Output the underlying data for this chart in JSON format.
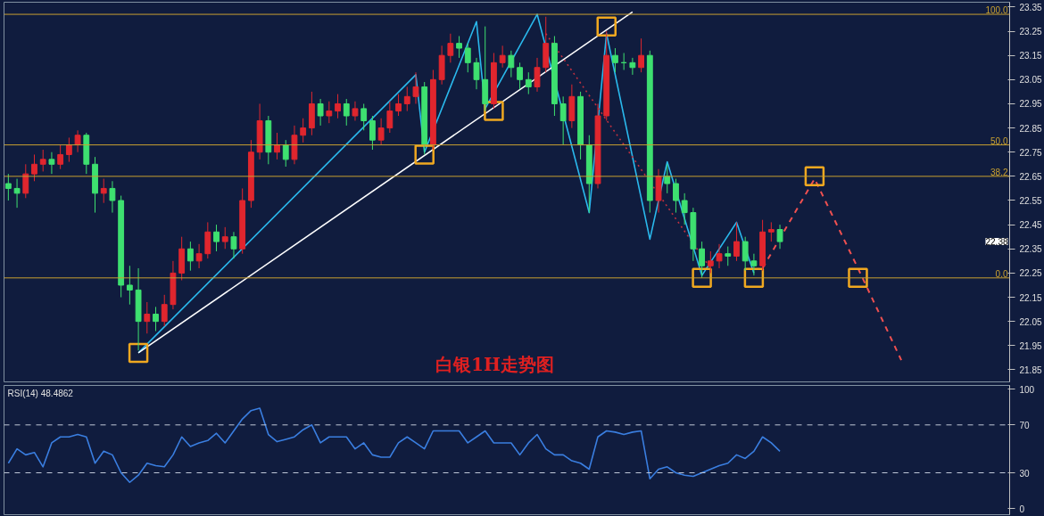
{
  "chart_data": [
    {
      "type": "candlestick",
      "title": "白银1H走势图",
      "ylim": [
        21.8,
        23.37
      ],
      "yticks": [
        21.85,
        21.95,
        22.05,
        22.15,
        22.25,
        22.35,
        22.45,
        22.55,
        22.65,
        22.75,
        22.85,
        22.95,
        23.05,
        23.15,
        23.25,
        23.35
      ],
      "tick_labels": "y",
      "categories": [
        null,
        null,
        null,
        null,
        null,
        null,
        null,
        null,
        null,
        null,
        null,
        null,
        null,
        null,
        null,
        null,
        null,
        null,
        null,
        null,
        null,
        null,
        null,
        null,
        null,
        null,
        null,
        null,
        null,
        null,
        null,
        null,
        null,
        null,
        null,
        null,
        null,
        null,
        null,
        null,
        null,
        null,
        null,
        null,
        null,
        null,
        null,
        null,
        null,
        null,
        null,
        null,
        null,
        null,
        null,
        null,
        null,
        null,
        null,
        null,
        null,
        null,
        null,
        null,
        null,
        null,
        null,
        null,
        null,
        null,
        null,
        null,
        null,
        null,
        null,
        null,
        null,
        null,
        null,
        null,
        null,
        null,
        null,
        null,
        null,
        null,
        null,
        null,
        null,
        null,
        null,
        null,
        null,
        null,
        null,
        null,
        null,
        null,
        null,
        null,
        null,
        null,
        null,
        null,
        null,
        null,
        null,
        null,
        null,
        null,
        null,
        null,
        null,
        null,
        null,
        null
      ],
      "ohlc": [
        [
          22.62,
          22.66,
          22.55,
          22.6
        ],
        [
          22.6,
          22.64,
          22.52,
          22.58
        ],
        [
          22.58,
          22.7,
          22.56,
          22.66
        ],
        [
          22.66,
          22.74,
          22.63,
          22.7
        ],
        [
          22.7,
          22.76,
          22.67,
          22.72
        ],
        [
          22.72,
          22.75,
          22.66,
          22.7
        ],
        [
          22.7,
          22.78,
          22.68,
          22.74
        ],
        [
          22.74,
          22.81,
          22.71,
          22.78
        ],
        [
          22.78,
          22.84,
          22.75,
          22.82
        ],
        [
          22.82,
          22.83,
          22.66,
          22.7
        ],
        [
          22.7,
          22.73,
          22.5,
          22.58
        ],
        [
          22.58,
          22.64,
          22.54,
          22.6
        ],
        [
          22.6,
          22.63,
          22.5,
          22.55
        ],
        [
          22.55,
          22.57,
          22.15,
          22.2
        ],
        [
          22.2,
          22.28,
          22.12,
          22.18
        ],
        [
          22.18,
          22.27,
          21.93,
          22.05
        ],
        [
          22.05,
          22.13,
          22.0,
          22.08
        ],
        [
          22.08,
          22.11,
          22.01,
          22.05
        ],
        [
          22.05,
          22.16,
          22.03,
          22.12
        ],
        [
          22.12,
          22.3,
          22.1,
          22.25
        ],
        [
          22.25,
          22.4,
          22.22,
          22.35
        ],
        [
          22.35,
          22.38,
          22.26,
          22.3
        ],
        [
          22.3,
          22.37,
          22.27,
          22.33
        ],
        [
          22.33,
          22.46,
          22.31,
          22.42
        ],
        [
          22.42,
          22.45,
          22.34,
          22.38
        ],
        [
          22.38,
          22.44,
          22.35,
          22.4
        ],
        [
          22.4,
          22.42,
          22.31,
          22.35
        ],
        [
          22.35,
          22.6,
          22.33,
          22.55
        ],
        [
          22.55,
          22.8,
          22.52,
          22.75
        ],
        [
          22.75,
          22.95,
          22.72,
          22.88
        ],
        [
          22.88,
          22.9,
          22.7,
          22.75
        ],
        [
          22.75,
          22.83,
          22.72,
          22.78
        ],
        [
          22.78,
          22.8,
          22.69,
          22.72
        ],
        [
          22.72,
          22.86,
          22.7,
          22.82
        ],
        [
          22.82,
          22.89,
          22.79,
          22.85
        ],
        [
          22.85,
          23.0,
          22.82,
          22.95
        ],
        [
          22.95,
          22.97,
          22.86,
          22.9
        ],
        [
          22.9,
          22.96,
          22.87,
          22.92
        ],
        [
          22.92,
          22.99,
          22.89,
          22.95
        ],
        [
          22.95,
          22.97,
          22.86,
          22.9
        ],
        [
          22.9,
          22.96,
          22.88,
          22.93
        ],
        [
          22.93,
          22.95,
          22.84,
          22.88
        ],
        [
          22.88,
          22.9,
          22.76,
          22.8
        ],
        [
          22.8,
          22.89,
          22.78,
          22.85
        ],
        [
          22.85,
          22.96,
          22.83,
          22.92
        ],
        [
          22.92,
          22.99,
          22.9,
          22.95
        ],
        [
          22.95,
          23.02,
          22.92,
          22.98
        ],
        [
          22.98,
          23.08,
          22.95,
          23.02
        ],
        [
          23.02,
          23.04,
          22.74,
          22.78
        ],
        [
          22.78,
          23.09,
          22.76,
          23.05
        ],
        [
          23.05,
          23.19,
          23.03,
          23.15
        ],
        [
          23.15,
          23.24,
          23.12,
          23.2
        ],
        [
          23.2,
          23.23,
          23.14,
          23.18
        ],
        [
          23.18,
          23.2,
          23.08,
          23.12
        ],
        [
          23.12,
          23.14,
          23.01,
          23.05
        ],
        [
          23.05,
          23.27,
          22.92,
          22.95
        ],
        [
          22.95,
          23.16,
          22.93,
          23.12
        ],
        [
          23.12,
          23.19,
          23.1,
          23.15
        ],
        [
          23.15,
          23.17,
          23.06,
          23.1
        ],
        [
          23.1,
          23.12,
          23.01,
          23.05
        ],
        [
          23.05,
          23.08,
          22.99,
          23.02
        ],
        [
          23.02,
          23.14,
          23.0,
          23.1
        ],
        [
          23.1,
          23.31,
          23.08,
          23.2
        ],
        [
          23.2,
          23.23,
          22.9,
          22.95
        ],
        [
          22.95,
          22.98,
          22.78,
          22.88
        ],
        [
          22.88,
          23.03,
          22.85,
          22.98
        ],
        [
          22.98,
          23.0,
          22.72,
          22.78
        ],
        [
          22.78,
          22.82,
          22.5,
          22.62
        ],
        [
          22.62,
          22.95,
          22.6,
          22.9
        ],
        [
          22.9,
          23.25,
          22.88,
          23.15
        ],
        [
          23.15,
          23.18,
          23.08,
          23.12
        ],
        [
          23.12,
          23.16,
          23.09,
          23.12
        ],
        [
          23.12,
          23.14,
          23.07,
          23.1
        ],
        [
          23.1,
          23.22,
          23.08,
          23.15
        ],
        [
          23.15,
          23.17,
          22.5,
          22.55
        ],
        [
          22.55,
          22.68,
          22.5,
          22.65
        ],
        [
          22.65,
          22.7,
          22.58,
          22.62
        ],
        [
          22.62,
          22.64,
          22.5,
          22.55
        ],
        [
          22.55,
          22.58,
          22.45,
          22.5
        ],
        [
          22.5,
          22.52,
          22.3,
          22.35
        ],
        [
          22.35,
          22.38,
          22.23,
          22.28
        ],
        [
          22.28,
          22.34,
          22.25,
          22.3
        ],
        [
          22.3,
          22.37,
          22.27,
          22.33
        ],
        [
          22.33,
          22.36,
          22.28,
          22.32
        ],
        [
          22.32,
          22.46,
          22.3,
          22.38
        ],
        [
          22.38,
          22.4,
          22.26,
          22.3
        ],
        [
          22.3,
          22.33,
          22.24,
          22.28
        ],
        [
          22.28,
          22.47,
          22.26,
          22.42
        ],
        [
          22.42,
          22.46,
          22.38,
          22.43
        ],
        [
          22.43,
          22.45,
          22.35,
          22.38
        ],
        null,
        null,
        null,
        null,
        null,
        null,
        null,
        null,
        null,
        null,
        null,
        null,
        null,
        null,
        null,
        null,
        null,
        null,
        null,
        null,
        null,
        null,
        null,
        null,
        null,
        null
      ],
      "colors": [
        "#3ee070",
        "#3ee070",
        "#e0262e",
        "#e0262e",
        "#e0262e",
        "#3ee070",
        "#e0262e",
        "#e0262e",
        "#e0262e",
        "#3ee070",
        "#3ee070",
        "#e0262e",
        "#3ee070",
        "#3ee070",
        "#3ee070",
        "#3ee070",
        "#e0262e",
        "#3ee070",
        "#e0262e",
        "#e0262e",
        "#e0262e",
        "#3ee070",
        "#e0262e",
        "#e0262e",
        "#3ee070",
        "#e0262e",
        "#3ee070",
        "#e0262e",
        "#e0262e",
        "#e0262e",
        "#3ee070",
        "#e0262e",
        "#3ee070",
        "#e0262e",
        "#e0262e",
        "#e0262e",
        "#3ee070",
        "#e0262e",
        "#e0262e",
        "#3ee070",
        "#e0262e",
        "#3ee070",
        "#3ee070",
        "#e0262e",
        "#e0262e",
        "#e0262e",
        "#e0262e",
        "#e0262e",
        "#3ee070",
        "#e0262e",
        "#e0262e",
        "#e0262e",
        "#3ee070",
        "#3ee070",
        "#3ee070",
        "#3ee070",
        "#e0262e",
        "#e0262e",
        "#3ee070",
        "#3ee070",
        "#3ee070",
        "#e0262e",
        "#e0262e",
        "#3ee070",
        "#3ee070",
        "#e0262e",
        "#3ee070",
        "#3ee070",
        "#e0262e",
        "#e0262e",
        "#3ee070",
        "#3ee070",
        "#3ee070",
        "#e0262e",
        "#3ee070",
        "#e0262e",
        "#3ee070",
        "#3ee070",
        "#3ee070",
        "#3ee070",
        "#3ee070",
        "#e0262e",
        "#e0262e",
        "#3ee070",
        "#e0262e",
        "#3ee070",
        "#3ee070",
        "#e0262e",
        "#e0262e",
        "#3ee070",
        null,
        null,
        null,
        null,
        null,
        null,
        null,
        null,
        null,
        null,
        null,
        null,
        null,
        null,
        null,
        null,
        null,
        null,
        null,
        null,
        null,
        null,
        null,
        null,
        null,
        null
      ],
      "series": [
        {
          "type": "line",
          "color": "#2ab8ec",
          "values": [
            null,
            null,
            null,
            null,
            null,
            null,
            null,
            null,
            null,
            null,
            null,
            null,
            null,
            null,
            null,
            21.92,
            null,
            null,
            null,
            null,
            null,
            null,
            null,
            null,
            null,
            null,
            null,
            null,
            null,
            null,
            null,
            null,
            null,
            null,
            null,
            null,
            null,
            null,
            null,
            null,
            null,
            null,
            null,
            null,
            null,
            null,
            null,
            23.07,
            22.75,
            null,
            null,
            null,
            null,
            null,
            23.29,
            22.93,
            null,
            null,
            null,
            null,
            null,
            23.32,
            null,
            null,
            null,
            null,
            null,
            22.5,
            null,
            23.24,
            null,
            null,
            null,
            null,
            22.39,
            null,
            22.71,
            null,
            null,
            null,
            22.24,
            null,
            null,
            null,
            22.46,
            null,
            22.25,
            null,
            null,
            null,
            null,
            null,
            null,
            null,
            null,
            null,
            null,
            null,
            null,
            null,
            null,
            null,
            null,
            null,
            null,
            null,
            null,
            null,
            null,
            null,
            null,
            null,
            null,
            null,
            null,
            null
          ]
        },
        {
          "type": "line",
          "color": "#ffffff",
          "values": [
            null,
            null,
            null,
            null,
            null,
            null,
            null,
            null,
            null,
            null,
            null,
            null,
            null,
            null,
            null,
            21.92,
            null,
            null,
            null,
            null,
            null,
            null,
            null,
            null,
            null,
            null,
            null,
            null,
            null,
            null,
            null,
            null,
            null,
            null,
            null,
            null,
            null,
            null,
            null,
            null,
            null,
            null,
            null,
            null,
            null,
            null,
            null,
            null,
            null,
            null,
            null,
            null,
            null,
            null,
            null,
            null,
            null,
            null,
            null,
            null,
            null,
            null,
            null,
            null,
            null,
            null,
            null,
            null,
            null,
            null,
            null,
            null,
            23.33,
            null,
            null,
            null,
            null,
            null,
            null,
            null,
            null,
            null,
            null,
            null,
            null,
            null,
            null,
            null,
            null,
            null,
            null,
            null,
            null,
            null,
            null,
            null,
            null,
            null,
            null,
            null,
            null,
            null,
            null,
            null,
            null,
            null,
            null,
            null,
            null,
            null,
            null,
            null,
            null,
            null,
            null,
            null
          ]
        },
        {
          "type": "line",
          "color": "#c03040",
          "line_style": "dotted",
          "values": [
            null,
            null,
            null,
            null,
            null,
            null,
            null,
            null,
            null,
            null,
            null,
            null,
            null,
            null,
            null,
            null,
            null,
            null,
            null,
            null,
            null,
            null,
            null,
            null,
            null,
            null,
            null,
            null,
            null,
            null,
            null,
            null,
            null,
            null,
            null,
            null,
            null,
            null,
            null,
            null,
            null,
            null,
            null,
            null,
            null,
            null,
            null,
            null,
            null,
            null,
            null,
            null,
            null,
            null,
            null,
            null,
            null,
            null,
            null,
            null,
            null,
            null,
            23.24,
            null,
            null,
            null,
            null,
            null,
            null,
            null,
            null,
            null,
            null,
            null,
            null,
            null,
            null,
            null,
            null,
            null,
            null,
            22.27,
            null,
            null,
            null,
            null,
            null,
            null,
            null,
            null,
            null,
            null,
            null,
            null,
            null,
            null,
            null,
            null,
            null,
            null,
            null,
            null,
            null,
            null,
            null,
            null,
            null,
            null,
            null,
            null,
            null,
            null,
            null,
            null,
            null,
            null
          ]
        },
        {
          "type": "line",
          "color": "#f05050",
          "line_style": "dashed",
          "values": [
            null,
            null,
            null,
            null,
            null,
            null,
            null,
            null,
            null,
            null,
            null,
            null,
            null,
            null,
            null,
            null,
            null,
            null,
            null,
            null,
            null,
            null,
            null,
            null,
            null,
            null,
            null,
            null,
            null,
            null,
            null,
            null,
            null,
            null,
            null,
            null,
            null,
            null,
            null,
            null,
            null,
            null,
            null,
            null,
            null,
            null,
            null,
            null,
            null,
            null,
            null,
            null,
            null,
            null,
            null,
            null,
            null,
            null,
            null,
            null,
            null,
            null,
            null,
            null,
            null,
            null,
            null,
            null,
            null,
            null,
            null,
            null,
            null,
            null,
            null,
            null,
            null,
            null,
            null,
            null,
            null,
            null,
            null,
            null,
            null,
            null,
            null,
            22.27,
            null,
            null,
            null,
            null,
            null,
            22.64,
            null,
            null,
            null,
            null,
            22.27,
            null,
            null,
            null,
            null,
            21.89,
            null,
            null,
            null,
            null,
            null,
            null,
            null,
            null,
            null,
            null,
            null,
            null
          ]
        },
        {
          "type": "scatter",
          "marker": "square",
          "color": "#f0a820",
          "values": [
            null,
            null,
            null,
            null,
            null,
            null,
            null,
            null,
            null,
            null,
            null,
            null,
            null,
            null,
            null,
            21.92,
            null,
            null,
            null,
            null,
            null,
            null,
            null,
            null,
            null,
            null,
            null,
            null,
            null,
            null,
            null,
            null,
            null,
            null,
            null,
            null,
            null,
            null,
            null,
            null,
            null,
            null,
            null,
            null,
            null,
            null,
            null,
            null,
            22.74,
            null,
            null,
            null,
            null,
            null,
            null,
            null,
            22.92,
            null,
            null,
            null,
            null,
            null,
            null,
            null,
            null,
            null,
            null,
            null,
            null,
            23.27,
            null,
            null,
            null,
            null,
            null,
            null,
            null,
            null,
            null,
            null,
            22.23,
            null,
            null,
            null,
            null,
            null,
            22.23,
            null,
            null,
            null,
            null,
            null,
            null,
            22.65,
            null,
            null,
            null,
            null,
            22.23,
            null,
            null,
            null,
            null,
            null,
            null,
            null,
            null,
            null,
            null,
            null,
            null,
            null,
            null,
            null,
            null,
            null
          ]
        }
      ],
      "ref_lines": [
        {
          "axis": "y",
          "value": 23.32,
          "color": "#c8a030"
        },
        {
          "axis": "y",
          "value": 22.78,
          "color": "#c8a030"
        },
        {
          "axis": "y",
          "value": 22.65,
          "color": "#c8a030"
        },
        {
          "axis": "y",
          "value": 22.23,
          "color": "#c8a030"
        }
      ],
      "annotations": [
        {
          "text": "100.0",
          "y": 23.32
        },
        {
          "text": "50.0",
          "y": 22.78
        },
        {
          "text": "38.2",
          "y": 22.65
        },
        {
          "text": "0.0",
          "y": 22.23
        },
        {
          "text": "22.38",
          "y": 22.38
        }
      ]
    },
    {
      "type": "line",
      "title": "RSI(14) 48.4862",
      "ylim": [
        -5,
        103
      ],
      "yticks": [
        0,
        30,
        70,
        100
      ],
      "tick_labels": "y",
      "categories": [
        null,
        null,
        null,
        null,
        null,
        null,
        null,
        null,
        null,
        null,
        null,
        null,
        null,
        null,
        null,
        null,
        null,
        null,
        null,
        null,
        null,
        null,
        null,
        null,
        null,
        null,
        null,
        null,
        null,
        null,
        null,
        null,
        null,
        null,
        null,
        null,
        null,
        null,
        null,
        null,
        null,
        null,
        null,
        null,
        null,
        null,
        null,
        null,
        null,
        null,
        null,
        null,
        null,
        null,
        null,
        null,
        null,
        null,
        null,
        null,
        null,
        null,
        null,
        null,
        null,
        null,
        null,
        null,
        null,
        null,
        null,
        null,
        null,
        null,
        null,
        null,
        null,
        null,
        null,
        null,
        null,
        null,
        null,
        null,
        null,
        null,
        null,
        null,
        null,
        null,
        null,
        null,
        null,
        null,
        null,
        null,
        null,
        null,
        null,
        null,
        null,
        null,
        null,
        null,
        null,
        null,
        null,
        null,
        null,
        null,
        null,
        null,
        null,
        null,
        null,
        null
      ],
      "series": [
        {
          "color": "#3a7ee0",
          "values": [
            38,
            50,
            45,
            47,
            35,
            55,
            60,
            60,
            62,
            60,
            38,
            48,
            45,
            30,
            22,
            28,
            38,
            36,
            35,
            45,
            60,
            52,
            55,
            57,
            63,
            55,
            65,
            75,
            82,
            84,
            62,
            56,
            58,
            60,
            66,
            70,
            55,
            60,
            60,
            60,
            50,
            55,
            45,
            43,
            43,
            55,
            60,
            55,
            50,
            65,
            65,
            65,
            65,
            55,
            60,
            65,
            55,
            55,
            55,
            45,
            55,
            62,
            50,
            45,
            45,
            40,
            38,
            33,
            60,
            65,
            64,
            62,
            64,
            65,
            25,
            33,
            35,
            30,
            28,
            27,
            30,
            33,
            36,
            38,
            45,
            42,
            48,
            60,
            55,
            48,
            null,
            null,
            null,
            null,
            null,
            null,
            null,
            null,
            null,
            null,
            null,
            null,
            null,
            null,
            null,
            null,
            null,
            null,
            null,
            null,
            null,
            null,
            null,
            null,
            null,
            null
          ]
        }
      ],
      "ref_lines": [
        {
          "axis": "y",
          "value": 70,
          "color": "#c0c8d8",
          "line_style": "dashed"
        },
        {
          "axis": "y",
          "value": 30,
          "color": "#c0c8d8",
          "line_style": "dashed"
        }
      ]
    }
  ]
}
